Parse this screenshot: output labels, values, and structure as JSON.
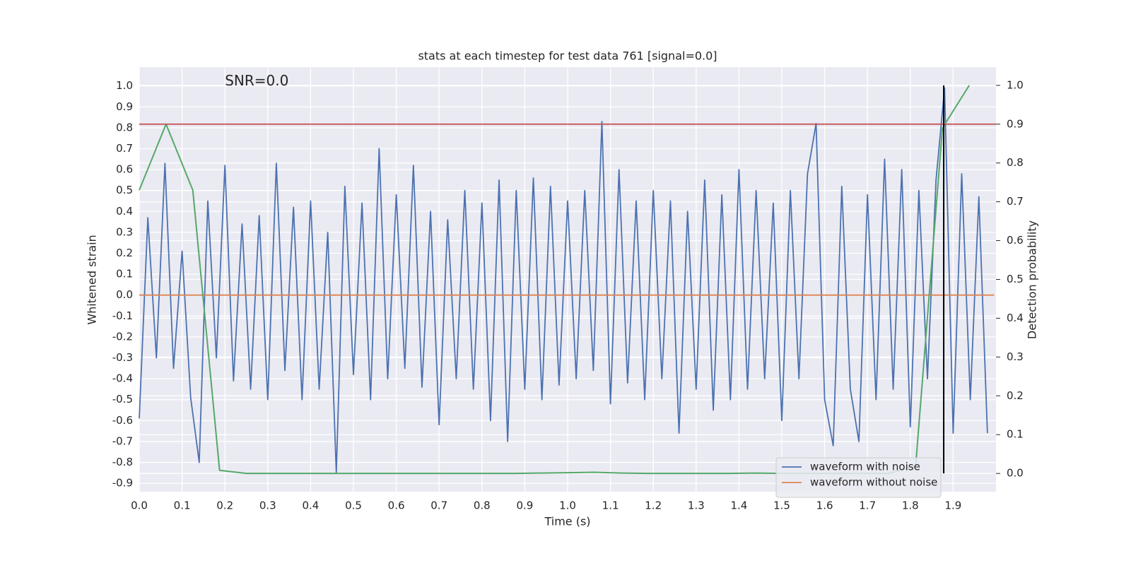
{
  "chart_data": {
    "type": "line",
    "title": "stats at each timestep for test data 761 [signal=0.0]",
    "xlabel": "Time (s)",
    "ylabel": "Whitened strain",
    "y2label": "Detection probability",
    "annotations": [
      {
        "text": "SNR=0.0",
        "x": 0.2,
        "y": 1.02
      }
    ],
    "xlim": [
      0,
      2.0
    ],
    "ylim": [
      -0.94,
      1.09
    ],
    "y2lim": [
      -0.047,
      1.047
    ],
    "xticks": [
      {
        "value": 0,
        "label": "0.0"
      },
      0.1,
      0.2,
      0.3,
      0.4,
      0.5,
      0.6,
      0.7,
      0.8,
      0.9,
      {
        "value": 1,
        "label": "1.0"
      },
      1.1,
      1.2,
      1.3,
      1.4,
      1.5,
      1.6,
      1.7,
      1.8,
      1.9
    ],
    "yticks": [
      -0.9,
      -0.8,
      -0.7,
      -0.6,
      -0.5,
      -0.4,
      -0.3,
      -0.2,
      -0.1,
      {
        "value": 0,
        "label": "0.0"
      },
      0.1,
      0.2,
      0.3,
      0.4,
      0.5,
      0.6,
      0.7,
      0.8,
      0.9,
      {
        "value": 1,
        "label": "1.0"
      }
    ],
    "y2ticks": [
      {
        "value": 0,
        "label": "0.0"
      },
      0.1,
      0.2,
      0.3,
      0.4,
      0.5,
      0.6,
      0.7,
      0.8,
      0.9,
      {
        "value": 1,
        "label": "1.0"
      }
    ],
    "grid": true,
    "legend": "lower right",
    "series": [
      {
        "name": "waveform with noise",
        "color": "#4c72b0",
        "x": [
          0,
          0.02,
          0.04,
          0.06,
          0.08,
          0.1,
          0.12,
          0.14,
          0.16,
          0.18,
          0.2,
          0.22,
          0.24,
          0.26,
          0.28,
          0.3,
          0.32,
          0.34,
          0.36,
          0.38,
          0.4,
          0.42,
          0.44,
          0.46,
          0.48,
          0.5,
          0.52,
          0.54,
          0.56,
          0.58,
          0.6,
          0.62,
          0.64,
          0.66,
          0.68,
          0.7,
          0.72,
          0.74,
          0.76,
          0.78,
          0.8,
          0.82,
          0.84,
          0.86,
          0.88,
          0.9,
          0.92,
          0.94,
          0.96,
          0.98,
          1,
          1.02,
          1.04,
          1.06,
          1.08,
          1.1,
          1.12,
          1.14,
          1.16,
          1.18,
          1.2,
          1.22,
          1.24,
          1.26,
          1.28,
          1.3,
          1.32,
          1.34,
          1.36,
          1.38,
          1.4,
          1.42,
          1.44,
          1.46,
          1.48,
          1.5,
          1.52,
          1.54,
          1.56,
          1.58,
          1.6,
          1.62,
          1.64,
          1.66,
          1.68,
          1.7,
          1.72,
          1.74,
          1.76,
          1.78,
          1.8,
          1.82,
          1.84,
          1.86,
          1.88,
          1.9,
          1.92,
          1.94,
          1.96,
          1.98
        ],
        "values": [
          -0.59,
          0.37,
          -0.3,
          0.63,
          -0.35,
          0.21,
          -0.49,
          -0.8,
          0.45,
          -0.3,
          0.62,
          -0.41,
          0.34,
          -0.45,
          0.38,
          -0.5,
          0.63,
          -0.36,
          0.42,
          -0.5,
          0.45,
          -0.45,
          0.3,
          -0.85,
          0.52,
          -0.38,
          0.44,
          -0.5,
          0.7,
          -0.4,
          0.48,
          -0.35,
          0.62,
          -0.44,
          0.4,
          -0.62,
          0.36,
          -0.4,
          0.5,
          -0.45,
          0.44,
          -0.6,
          0.55,
          -0.7,
          0.5,
          -0.45,
          0.56,
          -0.5,
          0.52,
          -0.43,
          0.45,
          -0.4,
          0.5,
          -0.36,
          0.83,
          -0.52,
          0.6,
          -0.42,
          0.45,
          -0.5,
          0.5,
          -0.4,
          0.45,
          -0.66,
          0.4,
          -0.45,
          0.55,
          -0.55,
          0.48,
          -0.5,
          0.6,
          -0.45,
          0.5,
          -0.4,
          0.44,
          -0.6,
          0.5,
          -0.4,
          0.58,
          0.82,
          -0.5,
          -0.72,
          0.52,
          -0.45,
          -0.7,
          0.48,
          -0.5,
          0.65,
          -0.45,
          0.6,
          -0.63,
          0.5,
          -0.4,
          0.55,
          0.99,
          -0.66,
          0.58,
          -0.5,
          0.47,
          -0.66
        ]
      },
      {
        "name": "waveform without noise",
        "color": "#dd8452",
        "x": [
          0,
          1.996
        ],
        "values": [
          0,
          0
        ]
      },
      {
        "color": "#55a868",
        "axis": "y2",
        "x": [
          0,
          0.0625,
          0.125,
          0.1875,
          0.25,
          0.3125,
          0.375,
          0.4375,
          0.5,
          0.5625,
          0.625,
          0.6875,
          0.75,
          0.8125,
          0.875,
          0.9375,
          1,
          1.0625,
          1.125,
          1.1875,
          1.25,
          1.3125,
          1.375,
          1.4375,
          1.5,
          1.5625,
          1.625,
          1.6875,
          1.75,
          1.8125,
          1.875,
          1.9375
        ],
        "values": [
          0.73,
          0.9,
          0.73,
          0.008,
          0.0,
          0.0,
          0.0,
          0.0,
          0.0,
          0.0,
          0.0,
          0.0,
          0.0,
          0.0,
          0.0,
          0.001,
          0.002,
          0.003,
          0.001,
          0.0,
          0.0,
          0.0,
          0.0,
          0.001,
          0.0,
          0.0,
          0.0,
          0.0,
          0.0,
          0.02,
          0.89,
          1.0
        ]
      }
    ],
    "hlines": [
      {
        "value": 0.9,
        "axis": "y2",
        "color": "#c44e52"
      }
    ],
    "vlines": [
      {
        "x": 1.878,
        "ymin": 0,
        "ymax": 1,
        "axis": "y2",
        "color": "#000000"
      }
    ]
  }
}
